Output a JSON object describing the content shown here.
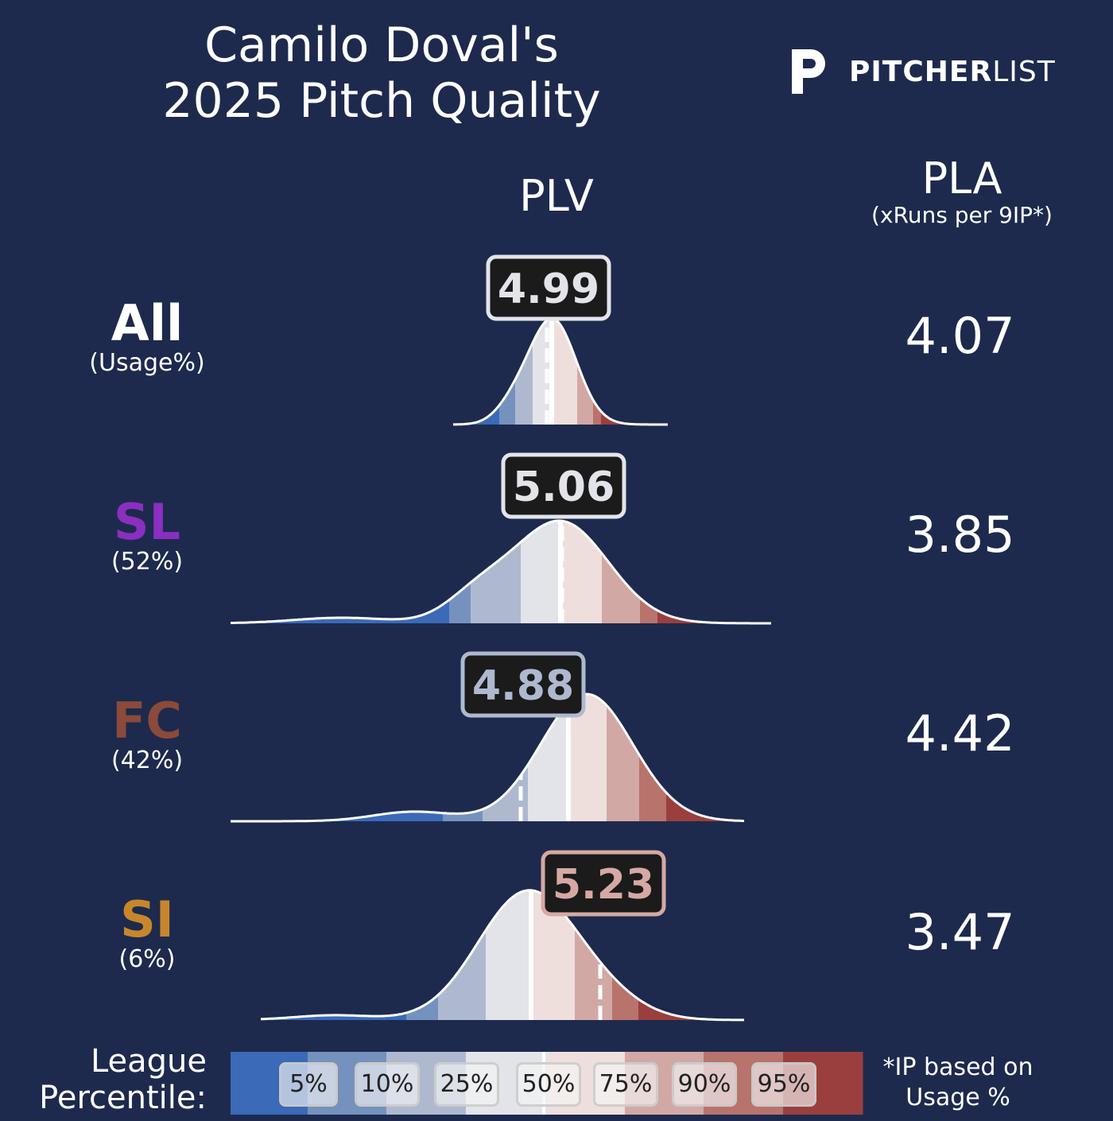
{
  "title_line1": "Camilo Doval's",
  "title_line2": "2025 Pitch Quality",
  "logo": {
    "mark": "P",
    "brand_bold": "PITCHER",
    "brand_light": "LIST"
  },
  "headers": {
    "plv": "PLV",
    "pla": "PLA",
    "pla_sub": "(xRuns per 9IP*)"
  },
  "colors": {
    "background": "#1d2a4d",
    "bands": [
      "#3a6ab8",
      "#7591bd",
      "#aeb9d0",
      "#e3e4ea",
      "#efdfdc",
      "#d2a8a4",
      "#b8736d",
      "#9a3f3d"
    ]
  },
  "chart_data": {
    "type": "density",
    "rows": [
      {
        "pitch": "All",
        "usage": "(Usage%)",
        "plv": "4.99",
        "pla": "4.07",
        "color": "#ffffff",
        "box_color": "#e3e4ea"
      },
      {
        "pitch": "SL",
        "usage": "(52%)",
        "plv": "5.06",
        "pla": "3.85",
        "color": "#8a2fc0",
        "box_color": "#e3e4ea"
      },
      {
        "pitch": "FC",
        "usage": "(42%)",
        "plv": "4.88",
        "pla": "4.42",
        "color": "#8b4a3a",
        "box_color": "#aeb9d0"
      },
      {
        "pitch": "SI",
        "usage": "(6%)",
        "plv": "5.23",
        "pla": "3.47",
        "color": "#c8862c",
        "box_color": "#d6a8a4"
      }
    ]
  },
  "legend": {
    "label_line1": "League",
    "label_line2": "Percentile:",
    "percentiles": [
      "5%",
      "10%",
      "25%",
      "50%",
      "75%",
      "90%",
      "95%"
    ]
  },
  "footnote_line1": "*IP based on",
  "footnote_line2": "Usage %"
}
